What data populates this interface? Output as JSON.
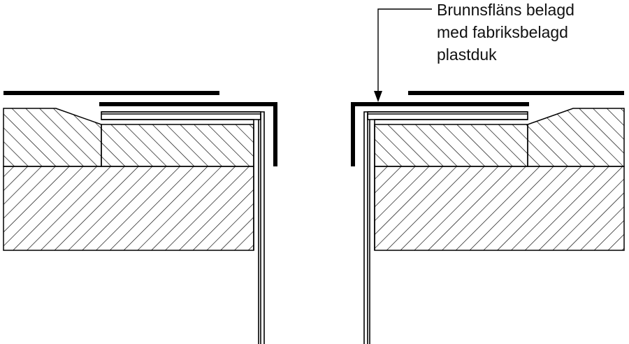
{
  "annotation": {
    "lines": [
      "Brunnsfläns belagd",
      "med fabriksbelagd",
      "plastduk"
    ]
  },
  "colors": {
    "line": "#000000",
    "background": "#ffffff"
  }
}
